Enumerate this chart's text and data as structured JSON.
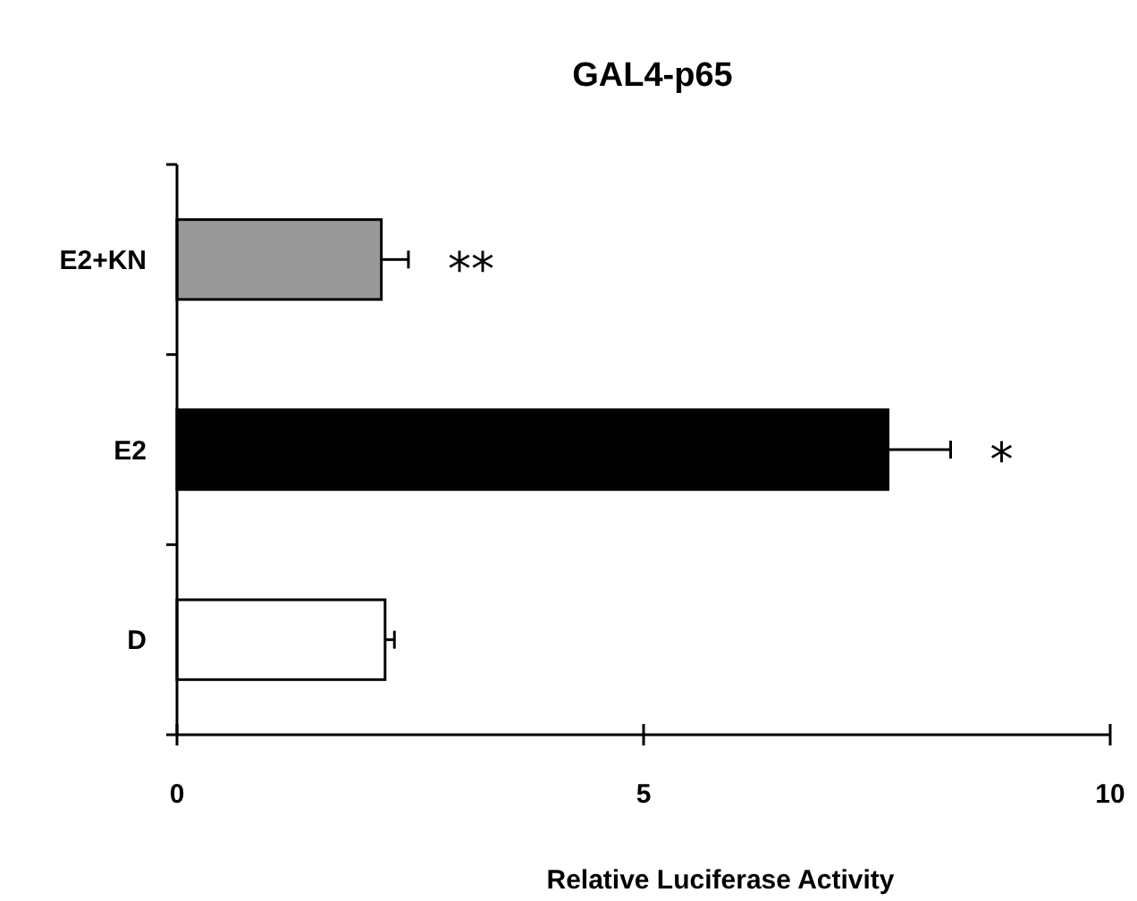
{
  "chart_data": {
    "type": "bar",
    "orientation": "horizontal",
    "title": "GAL4-p65",
    "xlabel": "Relative Luciferase Activity",
    "categories": [
      "E2+KN",
      "E2",
      "D"
    ],
    "values": [
      2.19,
      7.62,
      2.23
    ],
    "colors": [
      "#999999",
      "#000000",
      "#ffffff"
    ],
    "errors": [
      [
        2.19,
        2.48
      ],
      [
        7.62,
        8.29
      ],
      [
        2.23,
        2.33
      ]
    ],
    "xlim": [
      0,
      10
    ],
    "xticks": [
      0,
      5,
      10
    ],
    "annotations": [
      "**",
      "*"
    ]
  }
}
